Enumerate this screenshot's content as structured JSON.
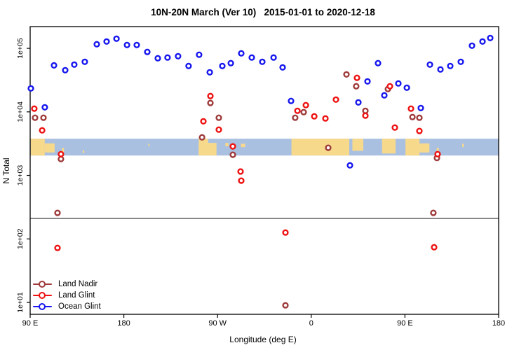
{
  "title": "10N-20N March (Ver 10)   2015-01-01 to 2020-12-18",
  "chart_data": {
    "type": "scatter",
    "title": "10N-20N March (Ver 10)   2015-01-01 to 2020-12-18",
    "xlabel": "Longitude (deg E)",
    "ylabel": "N Total",
    "grid": false,
    "legend_position": "bottom-left",
    "x_axis": {
      "range": [
        90,
        540
      ],
      "ticks": [
        90,
        180,
        270,
        360,
        450,
        540
      ],
      "tick_labels": [
        "90 E",
        "180",
        "90 W",
        "0",
        "90 E",
        "180"
      ],
      "note": "longitude axis wraps: 90E to 180 twice around the globe"
    },
    "y_axis": {
      "scale": "log",
      "range": [
        6.5,
        220000
      ],
      "ticks": [
        10,
        100,
        1000,
        10000,
        100000
      ],
      "tick_labels": [
        "1e+01",
        "1e+02",
        "1e+03",
        "1e+04",
        "1e+05"
      ]
    },
    "threshold_line": {
      "value": 210,
      "color": "#333333"
    },
    "map_band": {
      "description": "world coastline strip for 10N-20N latitude",
      "value_top": 3780,
      "value_bottom": 2055,
      "ocean_color": "#a9c0e1",
      "land_color": "#f7d98c",
      "land_rects": [
        [
          90.5,
          104,
          0,
          1
        ],
        [
          104,
          113.5,
          0.28,
          0.82
        ],
        [
          120.5,
          122.5,
          0.55,
          0.8
        ],
        [
          140.5,
          142,
          0.7,
          0.85
        ],
        [
          203.5,
          204.6,
          0.3,
          0.45
        ],
        [
          251.8,
          269,
          0.25,
          1
        ],
        [
          252,
          261,
          0,
          0.3
        ],
        [
          277.5,
          280.5,
          0.25,
          0.45
        ],
        [
          292.5,
          296.5,
          0.3,
          0.5
        ],
        [
          341,
          396.5,
          0,
          1
        ],
        [
          399.5,
          410,
          0,
          0.72
        ],
        [
          428,
          441,
          0,
          0.88
        ],
        [
          450.5,
          464,
          0,
          1
        ],
        [
          464,
          473.5,
          0.28,
          0.82
        ],
        [
          480.5,
          482.5,
          0.55,
          0.8
        ],
        [
          505,
          506.5,
          0.3,
          0.5
        ]
      ]
    },
    "series": [
      {
        "name": "Land Nadir",
        "color": "#9e3a3a",
        "points": [
          [
            94.7,
            8080
          ],
          [
            102.8,
            8080
          ],
          [
            119.6,
            1810
          ],
          [
            116.3,
            257
          ],
          [
            255.1,
            3970
          ],
          [
            263.1,
            13800
          ],
          [
            271.2,
            8080
          ],
          [
            284.7,
            2110
          ],
          [
            335.2,
            9
          ],
          [
            344.6,
            8080
          ],
          [
            352.7,
            9900
          ],
          [
            376.3,
            2720
          ],
          [
            393.8,
            38900
          ],
          [
            403.2,
            25300
          ],
          [
            412,
            10400
          ],
          [
            433.6,
            22900
          ],
          [
            457.2,
            8280
          ],
          [
            463.9,
            8080
          ],
          [
            477.3,
            257
          ],
          [
            480.7,
            1880
          ]
        ]
      },
      {
        "name": "Land Glint",
        "color": "#ee1111",
        "points": [
          [
            94,
            11250
          ],
          [
            101.5,
            5120
          ],
          [
            119.6,
            2160
          ],
          [
            116.3,
            72
          ],
          [
            256.4,
            7110
          ],
          [
            263.1,
            17750
          ],
          [
            271.2,
            5250
          ],
          [
            284.7,
            2860
          ],
          [
            292.1,
            1150
          ],
          [
            292.8,
            825
          ],
          [
            335.2,
            126
          ],
          [
            346.7,
            10400
          ],
          [
            354.8,
            12750
          ],
          [
            362.9,
            8500
          ],
          [
            373.6,
            7880
          ],
          [
            383.7,
            15600
          ],
          [
            403.9,
            34300
          ],
          [
            412,
            8730
          ],
          [
            435.6,
            25300
          ],
          [
            440.3,
            5660
          ],
          [
            455.8,
            11250
          ],
          [
            463.9,
            5000
          ],
          [
            478,
            74
          ],
          [
            481.4,
            2160
          ]
        ]
      },
      {
        "name": "Ocean Glint",
        "color": "#1616ee",
        "points": [
          [
            90.7,
            23400
          ],
          [
            104.1,
            11800
          ],
          [
            112.9,
            54000
          ],
          [
            123.7,
            45300
          ],
          [
            132.4,
            55500
          ],
          [
            142.5,
            61400
          ],
          [
            154,
            116000
          ],
          [
            163.4,
            128000
          ],
          [
            172.9,
            142000
          ],
          [
            183,
            113000
          ],
          [
            192.4,
            113000
          ],
          [
            202.5,
            87700
          ],
          [
            212.6,
            69800
          ],
          [
            222,
            71600
          ],
          [
            232.1,
            75300
          ],
          [
            242.2,
            52700
          ],
          [
            252.3,
            79300
          ],
          [
            262.5,
            42000
          ],
          [
            274.6,
            52700
          ],
          [
            282.7,
            58500
          ],
          [
            292.8,
            83400
          ],
          [
            302.9,
            71600
          ],
          [
            313,
            61400
          ],
          [
            323.8,
            71600
          ],
          [
            332.5,
            50100
          ],
          [
            340.6,
            14850
          ],
          [
            397.2,
            1440
          ],
          [
            405.3,
            14100
          ],
          [
            414,
            30200
          ],
          [
            424.1,
            58500
          ],
          [
            430.2,
            18200
          ],
          [
            443.7,
            28000
          ],
          [
            451.8,
            24000
          ],
          [
            465.2,
            11500
          ],
          [
            474,
            55500
          ],
          [
            484.1,
            46500
          ],
          [
            493.5,
            52700
          ],
          [
            503.6,
            61400
          ],
          [
            514.4,
            110000
          ],
          [
            524.5,
            128000
          ],
          [
            531.9,
            145500
          ]
        ]
      }
    ]
  },
  "legend": {
    "items": [
      "Land Nadir",
      "Land Glint",
      "Ocean Glint"
    ]
  }
}
